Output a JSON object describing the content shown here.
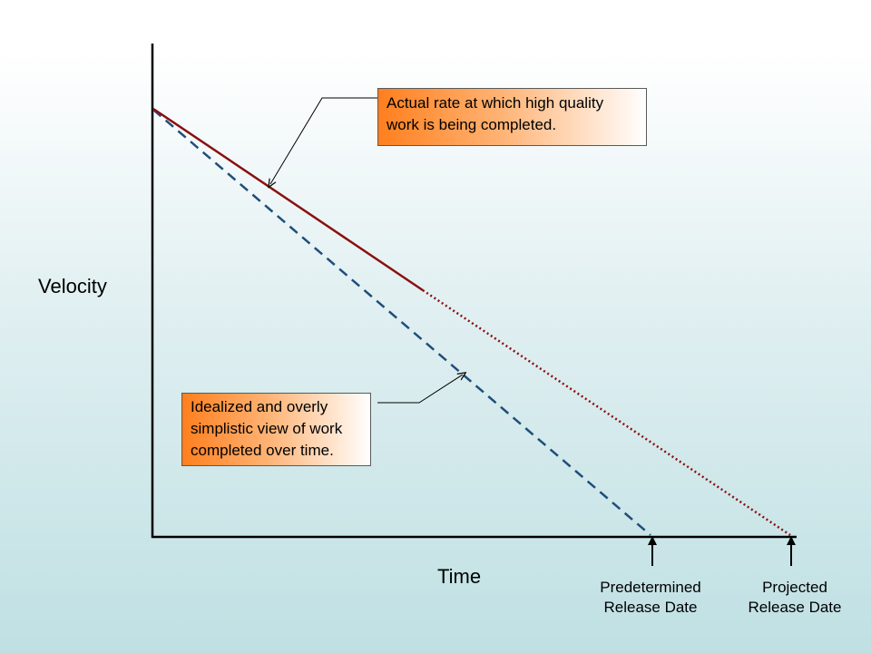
{
  "axes": {
    "y_label": "Velocity",
    "x_label": "Time"
  },
  "markers": {
    "predetermined": "Predetermined\nRelease Date",
    "projected": "Projected\nRelease Date"
  },
  "callouts": {
    "actual": "Actual rate at which high quality work is being completed.",
    "ideal": "Idealized and overly simplistic view of work completed over time."
  },
  "colors": {
    "actual_line": "#8b0f0f",
    "ideal_line": "#1f4e79",
    "callout_accent": "#ff7f1e",
    "axis": "#000000"
  }
}
